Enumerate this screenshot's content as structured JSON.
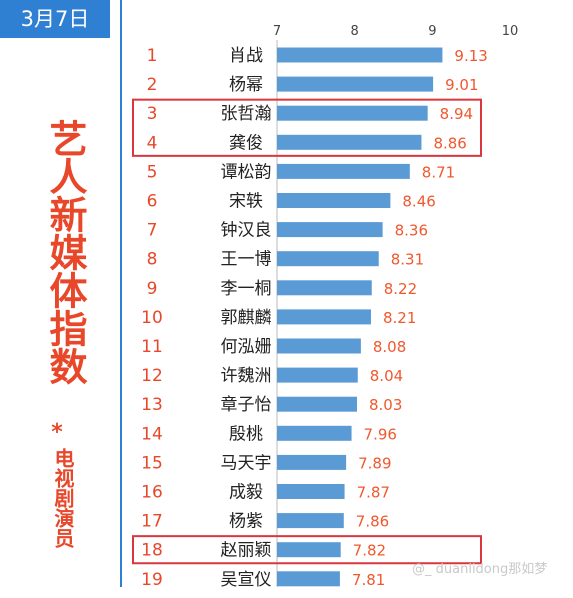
{
  "header": {
    "date": "3月7日",
    "title": "艺人新媒体指数",
    "star": "*",
    "subtitle": "电视剧演员"
  },
  "watermark": "@_ duanlidong那如梦",
  "colors": {
    "bar": "#5b9bd5",
    "value": "#f0582e",
    "rank": "#e8472a",
    "highlight": "#d9363e",
    "axis": "#555555"
  },
  "chart_data": {
    "type": "bar",
    "orientation": "horizontal",
    "xlim": [
      7,
      10
    ],
    "xticks": [
      7,
      8,
      9,
      10
    ],
    "ranks": [
      "1",
      "2",
      "3",
      "4",
      "5",
      "6",
      "7",
      "8",
      "9",
      "10",
      "11",
      "12",
      "13",
      "14",
      "15",
      "16",
      "17",
      "18",
      "19"
    ],
    "categories": [
      "肖战",
      "杨幂",
      "张哲瀚",
      "龚俊",
      "谭松韵",
      "宋轶",
      "钟汉良",
      "王一博",
      "李一桐",
      "郭麒麟",
      "何泓姗",
      "许魏洲",
      "章子怡",
      "殷桃",
      "马天宇",
      "成毅",
      "杨紫",
      "赵丽颖",
      "吴宣仪"
    ],
    "values": [
      9.13,
      9.01,
      8.94,
      8.86,
      8.71,
      8.46,
      8.36,
      8.31,
      8.22,
      8.21,
      8.08,
      8.04,
      8.03,
      7.96,
      7.89,
      7.87,
      7.86,
      7.82,
      7.81
    ],
    "highlight_groups": [
      [
        "3",
        "4"
      ],
      [
        "18"
      ]
    ],
    "grid": false,
    "legend": "none"
  }
}
